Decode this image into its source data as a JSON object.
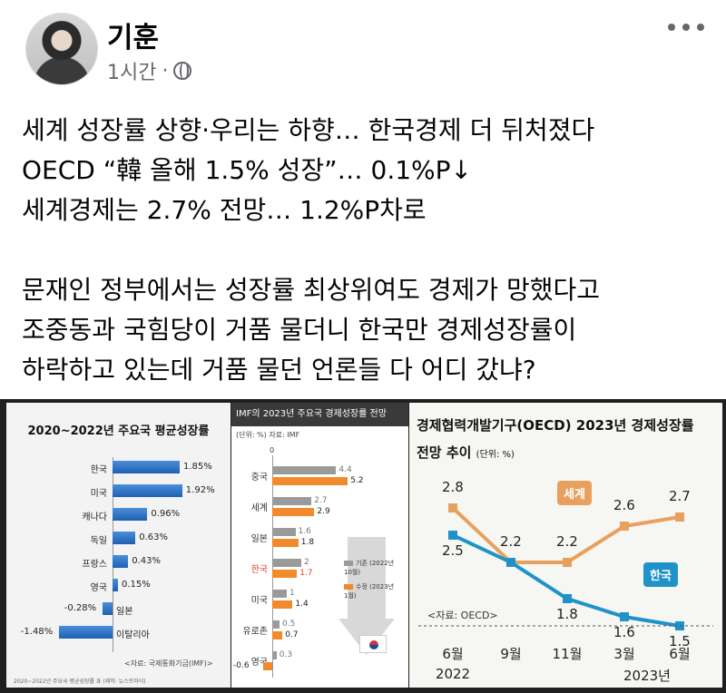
{
  "post": {
    "author": "기훈",
    "time": "1시간",
    "separator": "·",
    "icons": {
      "privacy": "globe-icon",
      "menu": "more-icon"
    },
    "lines": [
      "세계 성장률 상향·우리는 하향… 한국경제 더 뒤처졌다",
      "OECD “韓 올해 1.5% 성장”… 0.1%P↓",
      "세계경제는 2.7% 전망… 1.2%P차로",
      "",
      "문재인 정부에서는 성장률 최상위여도 경제가 망했다고",
      "조중동과 국힘당이 거품 물더니 한국만 경제성장률이",
      "하락하고 있는데 거품 물던 언론들 다 어디 갔냐?"
    ]
  },
  "chart_data": [
    {
      "type": "bar",
      "title": "2020~2022년 주요국 평균성장률",
      "categories": [
        "한국",
        "미국",
        "캐나다",
        "독일",
        "프랑스",
        "영국",
        "일본",
        "이탈리아"
      ],
      "values": [
        1.85,
        1.92,
        0.96,
        0.63,
        0.43,
        0.15,
        -0.28,
        -1.48
      ],
      "value_labels": [
        "1.85%",
        "1.92%",
        "0.96%",
        "0.63%",
        "0.43%",
        "0.15%",
        "-0.28%",
        "-1.48%"
      ],
      "source": "<자료: 국제통화기금(IMF)>",
      "footnote": "2020~2022년 주요국 평균성장률 표 (제작: 뉴스트마이)"
    },
    {
      "type": "bar",
      "title": "IMF의 2023년 주요국 경제성장률 전망",
      "unit_label": "(단위: %)  자료: IMF",
      "zero_label": "0",
      "categories": [
        "중국",
        "세계",
        "일본",
        "한국",
        "미국",
        "유로존",
        "영국"
      ],
      "series": [
        {
          "name": "기존 (2022년 10월)",
          "values": [
            4.4,
            2.7,
            1.6,
            2.0,
            1.0,
            0.5,
            0.3
          ],
          "color": "#9a9a9a"
        },
        {
          "name": "수정 (2023년 1월)",
          "values": [
            5.2,
            2.9,
            1.8,
            1.7,
            1.4,
            0.7,
            -0.6
          ],
          "color": "#f08a2a"
        }
      ],
      "highlight": "한국"
    },
    {
      "type": "line",
      "title": "경제협력개발기구(OECD) 2023년 경제성장률",
      "title_line2": "전망 추이",
      "unit": "(단위: %)",
      "x": [
        "6월",
        "9월",
        "11월",
        "3월",
        "6월"
      ],
      "x_years": [
        "2022",
        "2023년"
      ],
      "series": [
        {
          "name": "세계",
          "values": [
            2.8,
            2.2,
            2.2,
            2.6,
            2.7
          ],
          "color": "#e8a05f"
        },
        {
          "name": "한국",
          "values": [
            2.5,
            2.2,
            1.8,
            1.6,
            1.5
          ],
          "color": "#1f93c9"
        }
      ],
      "source": "<자료: OECD>"
    }
  ]
}
